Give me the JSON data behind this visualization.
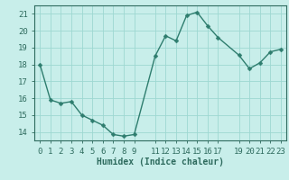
{
  "x": [
    0,
    1,
    2,
    3,
    4,
    5,
    6,
    7,
    8,
    9,
    11,
    12,
    13,
    14,
    15,
    16,
    17,
    19,
    20,
    21,
    22,
    23
  ],
  "y": [
    18.0,
    15.9,
    15.7,
    15.8,
    15.0,
    14.7,
    14.4,
    13.85,
    13.75,
    13.85,
    18.5,
    19.7,
    19.4,
    20.9,
    21.1,
    20.3,
    19.6,
    18.55,
    17.75,
    18.1,
    18.75,
    18.9
  ],
  "line_color": "#2e7d6e",
  "marker": "D",
  "marker_size": 2.5,
  "bg_color": "#c8eeea",
  "grid_color": "#9ed8d2",
  "tick_color": "#2e6b5e",
  "xlabel": "Humidex (Indice chaleur)",
  "xlim": [
    -0.5,
    23.5
  ],
  "ylim": [
    13.5,
    21.5
  ],
  "yticks": [
    14,
    15,
    16,
    17,
    18,
    19,
    20,
    21
  ],
  "xticks": [
    0,
    1,
    2,
    3,
    4,
    5,
    6,
    7,
    8,
    9,
    11,
    12,
    13,
    14,
    15,
    16,
    17,
    19,
    20,
    21,
    22,
    23
  ],
  "xtick_labels": [
    "0",
    "1",
    "2",
    "3",
    "4",
    "5",
    "6",
    "7",
    "8",
    "9",
    "11",
    "12",
    "13",
    "14",
    "15",
    "16",
    "17",
    "19",
    "20",
    "21",
    "22",
    "23"
  ],
  "xlabel_fontsize": 7,
  "tick_fontsize": 6.5,
  "linewidth": 1.0
}
